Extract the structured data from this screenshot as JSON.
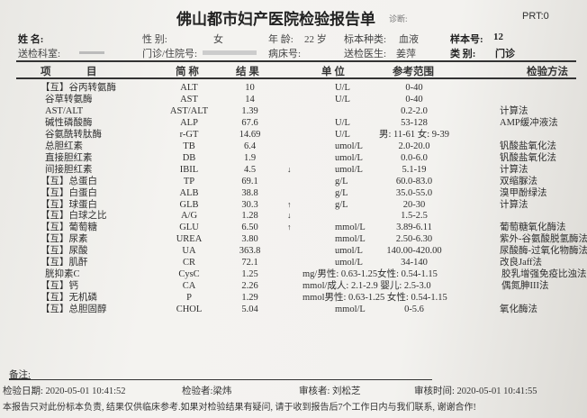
{
  "header": {
    "title": "佛山都市妇产医院检验报告单",
    "diagnosis_label": "诊断:",
    "prt": "PRT:0",
    "name_label": "姓    名:",
    "gender_label": "性    别:",
    "gender": "女",
    "age_label": "年 龄:",
    "age": "22 岁",
    "specimen_label": "标本种类:",
    "specimen": "血液",
    "sample_no_label": "样本号:",
    "sample_no": "12",
    "dept_label": "送检科室:",
    "outpatient_label": "门诊/住院号:",
    "bed_label": "病床号:",
    "doctor_label": "送检医生:",
    "doctor": "姜萍",
    "category_label": "类    别:",
    "category": "门诊"
  },
  "columns": [
    "项",
    "目",
    "简  称",
    "结  果",
    "单  位",
    "参考范围",
    "检验方法"
  ],
  "rows": [
    {
      "name": "【互】谷丙转氨酶",
      "abbr": "ALT",
      "result": "10",
      "flag": "",
      "unit": "U/L",
      "ref": "0-40",
      "method": ""
    },
    {
      "name": "谷草转氨酶",
      "abbr": "AST",
      "result": "14",
      "flag": "",
      "unit": "U/L",
      "ref": "0-40",
      "method": ""
    },
    {
      "name": "AST/ALT",
      "abbr": "AST/ALT",
      "result": "1.39",
      "flag": "",
      "unit": "",
      "ref": "0.2-2.0",
      "method": "计算法"
    },
    {
      "name": "碱性磷酸酶",
      "abbr": "ALP",
      "result": "67.6",
      "flag": "",
      "unit": "U/L",
      "ref": "53-128",
      "method": "AMP缓冲液法"
    },
    {
      "name": "谷氨酰转肽酶",
      "abbr": "r-GT",
      "result": "14.69",
      "flag": "",
      "unit": "U/L",
      "ref": "男: 11-61  女: 9-39",
      "method": ""
    },
    {
      "name": "总胆红素",
      "abbr": "TB",
      "result": "6.4",
      "flag": "",
      "unit": "umol/L",
      "ref": "2.0-20.0",
      "method": "钒酸盐氧化法"
    },
    {
      "name": "直接胆红素",
      "abbr": "DB",
      "result": "1.9",
      "flag": "",
      "unit": "umol/L",
      "ref": "0.0-6.0",
      "method": "钒酸盐氧化法"
    },
    {
      "name": "间接胆红素",
      "abbr": "IBIL",
      "result": "4.5",
      "flag": "↓",
      "unit": "umol/L",
      "ref": "5.1-19",
      "method": "计算法"
    },
    {
      "name": "【互】总蛋白",
      "abbr": "TP",
      "result": "69.1",
      "flag": "",
      "unit": "g/L",
      "ref": "60.0-83.0",
      "method": "双缩脲法"
    },
    {
      "name": "【互】白蛋白",
      "abbr": "ALB",
      "result": "38.8",
      "flag": "",
      "unit": "g/L",
      "ref": "35.0-55.0",
      "method": "溴甲酚绿法"
    },
    {
      "name": "【互】球蛋白",
      "abbr": "GLB",
      "result": "30.3",
      "flag": "↑",
      "unit": "g/L",
      "ref": "20-30",
      "method": "计算法"
    },
    {
      "name": "【互】白球之比",
      "abbr": "A/G",
      "result": "1.28",
      "flag": "↓",
      "unit": "",
      "ref": "1.5-2.5",
      "method": ""
    },
    {
      "name": "【互】葡萄糖",
      "abbr": "GLU",
      "result": "6.50",
      "flag": "↑",
      "unit": "mmol/L",
      "ref": "3.89-6.11",
      "method": "葡萄糖氧化酶法"
    },
    {
      "name": "【互】尿素",
      "abbr": "UREA",
      "result": "3.80",
      "flag": "",
      "unit": "mmol/L",
      "ref": "2.50-6.30",
      "method": "紫外-谷氨酸脱氢酶法"
    },
    {
      "name": "【互】尿酸",
      "abbr": "UA",
      "result": "363.8",
      "flag": "",
      "unit": "umol/L",
      "ref": "140.00-420.00",
      "method": "尿酸酶-过氧化物酶法"
    },
    {
      "name": "【互】肌酐",
      "abbr": "CR",
      "result": "72.1",
      "flag": "",
      "unit": "umol/L",
      "ref": "34-140",
      "method": "改良Jaff法"
    },
    {
      "name": "胱抑素C",
      "abbr": "CysC",
      "result": "1.25",
      "flag": "",
      "unit": "mg/男性: 0.63-1.25女性: 0.54-1.15",
      "ref": "",
      "method": "胶乳增强免疫比浊法"
    },
    {
      "name": "【互】钙",
      "abbr": "CA",
      "result": "2.26",
      "flag": "",
      "unit": "mmol/成人: 2.1-2.9  婴儿: 2.5-3.0",
      "ref": "",
      "method": "偶氮胂III法"
    },
    {
      "name": "【互】无机磷",
      "abbr": "P",
      "result": "1.29",
      "flag": "",
      "unit": "mmol男性: 0.63-1.25 女性: 0.54-1.15",
      "ref": "",
      "method": ""
    },
    {
      "name": "【互】总胆固醇",
      "abbr": "CHOL",
      "result": "5.04",
      "flag": "",
      "unit": "mmol/L",
      "ref": "0-5.6",
      "method": "氧化酶法"
    }
  ],
  "footer": {
    "remarks_label": "备注:",
    "test_date": "检验日期: 2020-05-01 10:41:52",
    "tester": "检验者:梁炜",
    "reviewer": "审核者: 刘松芝",
    "review_time": "审核时间: 2020-05-01 10:41:55",
    "notice": "本报告只对此份标本负责, 结果仅供临床参考.如果对检验结果有疑问, 请于收到报告后7个工作日内与我们联系, 谢谢合作!"
  }
}
